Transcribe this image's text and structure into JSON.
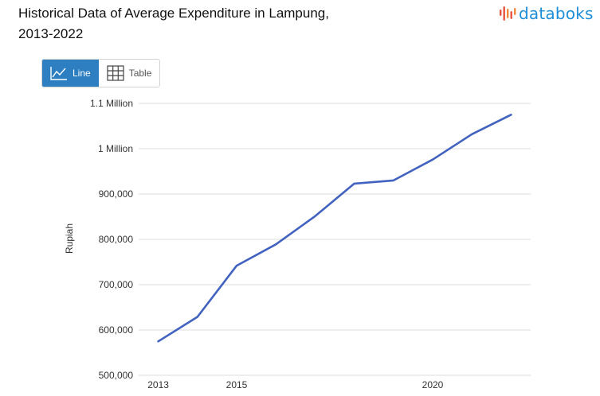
{
  "header": {
    "title_line1": "Historical Data of Average Expenditure in Lampung,",
    "title_line2": "2013-2022",
    "logo_text": "databoks"
  },
  "toggle": {
    "line_label": "Line",
    "table_label": "Table",
    "active": "line"
  },
  "colors": {
    "series": "#4262c0",
    "grid": "#dddddd",
    "active_button": "#2d7fc1",
    "logo_blue": "#1f8ed8",
    "logo_red": "#e8523c"
  },
  "chart_data": {
    "type": "line",
    "title": "Historical Data of Average Expenditure in Lampung, 2013-2022",
    "xlabel": "",
    "ylabel": "Rupiah",
    "x": [
      2013,
      2014,
      2015,
      2016,
      2017,
      2018,
      2019,
      2020,
      2021,
      2022
    ],
    "series": [
      {
        "values": [
          575000,
          629000,
          742000,
          789000,
          851000,
          923000,
          930000,
          976000,
          1032000,
          1075000
        ]
      }
    ],
    "ylim": [
      500000,
      1100000
    ],
    "yticks": [
      500000,
      600000,
      700000,
      800000,
      900000,
      1000000,
      1100000
    ],
    "ytick_labels": [
      "500,000",
      "600,000",
      "700,000",
      "800,000",
      "900,000",
      "1 Million",
      "1.1 Million"
    ],
    "xticks": [
      2013,
      2015,
      2020
    ],
    "xtick_labels": [
      "2013",
      "2015",
      "2020"
    ],
    "grid": true,
    "legend": "none"
  }
}
